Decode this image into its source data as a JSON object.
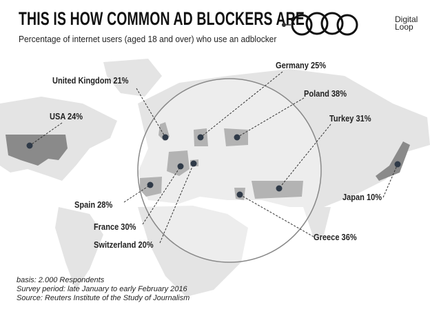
{
  "header": {
    "title": "THIS IS HOW COMMON AD BLOCKERS ARE",
    "subtitle": "Percentage of internet users (aged 18 and over) who use an adblocker",
    "logo": {
      "line1": "Digital",
      "line2": "Loop"
    }
  },
  "chart_data": {
    "type": "map",
    "title": "THIS IS HOW COMMON AD BLOCKERS ARE",
    "unit": "%",
    "countries": [
      {
        "name": "United Kingdom",
        "value": 21,
        "label": "United Kingdom 21%"
      },
      {
        "name": "USA",
        "value": 24,
        "label": "USA 24%"
      },
      {
        "name": "Germany",
        "value": 25,
        "label": "Germany 25%"
      },
      {
        "name": "Poland",
        "value": 38,
        "label": "Poland 38%"
      },
      {
        "name": "Turkey",
        "value": 31,
        "label": "Turkey 31%"
      },
      {
        "name": "Spain",
        "value": 28,
        "label": "Spain 28%"
      },
      {
        "name": "Japan",
        "value": 10,
        "label": "Japan 10%"
      },
      {
        "name": "France",
        "value": 30,
        "label": "France 30%"
      },
      {
        "name": "Greece",
        "value": 36,
        "label": "Greece 36%"
      },
      {
        "name": "Switzerland",
        "value": 20,
        "label": "Switzerland 20%"
      }
    ]
  },
  "footer": {
    "basis": "basis: 2.000 Respondents",
    "period": "Survey period: late January to early February 2016",
    "source": "Source: Reuters Institute of the Study of Journalism"
  }
}
